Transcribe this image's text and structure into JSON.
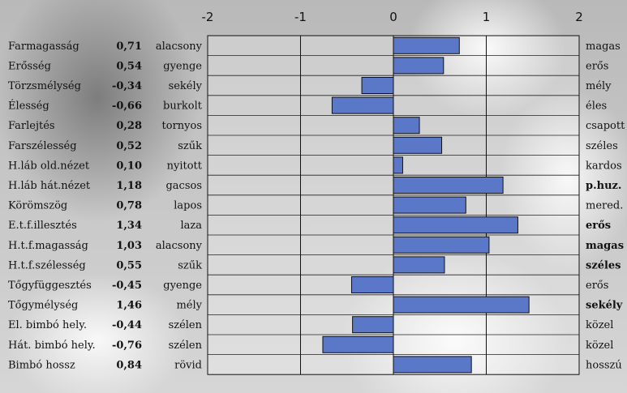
{
  "chart_data": {
    "type": "bar",
    "orientation": "horizontal",
    "xlim": [
      -2,
      2
    ],
    "xticks": [
      -2,
      -1,
      0,
      1,
      2
    ],
    "grid": true,
    "bar_color": "#5a77c8",
    "rows": [
      {
        "trait": "Farmagasság",
        "value": 0.71,
        "value_label": "0,71",
        "left": "alacsony",
        "right": "magas",
        "right_bold": false
      },
      {
        "trait": "Erősség",
        "value": 0.54,
        "value_label": "0,54",
        "left": "gyenge",
        "right": "erős",
        "right_bold": false
      },
      {
        "trait": "Törzsmélység",
        "value": -0.34,
        "value_label": "-0,34",
        "left": "sekély",
        "right": "mély",
        "right_bold": false
      },
      {
        "trait": "Élesség",
        "value": -0.66,
        "value_label": "-0,66",
        "left": "burkolt",
        "right": "éles",
        "right_bold": false
      },
      {
        "trait": "Farlejtés",
        "value": 0.28,
        "value_label": "0,28",
        "left": "tornyos",
        "right": "csapott",
        "right_bold": false
      },
      {
        "trait": "Farszélesség",
        "value": 0.52,
        "value_label": "0,52",
        "left": "szűk",
        "right": "széles",
        "right_bold": false
      },
      {
        "trait": "H.láb old.nézet",
        "value": 0.1,
        "value_label": "0,10",
        "left": "nyitott",
        "right": "kardos",
        "right_bold": false
      },
      {
        "trait": "H.láb hát.nézet",
        "value": 1.18,
        "value_label": "1,18",
        "left": "gacsos",
        "right": "p.huz.",
        "right_bold": true
      },
      {
        "trait": "Körömszög",
        "value": 0.78,
        "value_label": "0,78",
        "left": "lapos",
        "right": "mered.",
        "right_bold": false
      },
      {
        "trait": "E.t.f.illesztés",
        "value": 1.34,
        "value_label": "1,34",
        "left": "laza",
        "right": "erős",
        "right_bold": true
      },
      {
        "trait": "H.t.f.magasság",
        "value": 1.03,
        "value_label": "1,03",
        "left": "alacsony",
        "right": "magas",
        "right_bold": true
      },
      {
        "trait": "H.t.f.szélesség",
        "value": 0.55,
        "value_label": "0,55",
        "left": "szűk",
        "right": "széles",
        "right_bold": true
      },
      {
        "trait": "Tőgyfüggesztés",
        "value": -0.45,
        "value_label": "-0,45",
        "left": "gyenge",
        "right": "erős",
        "right_bold": false
      },
      {
        "trait": "Tőgymélység",
        "value": 1.46,
        "value_label": "1,46",
        "left": "mély",
        "right": "sekély",
        "right_bold": true
      },
      {
        "trait": "El. bimbó hely.",
        "value": -0.44,
        "value_label": "-0,44",
        "left": "szélen",
        "right": "közel",
        "right_bold": false
      },
      {
        "trait": "Hát. bimbó hely.",
        "value": -0.76,
        "value_label": "-0,76",
        "left": "szélen",
        "right": "közel",
        "right_bold": false
      },
      {
        "trait": "Bimbó hossz",
        "value": 0.84,
        "value_label": "0,84",
        "left": "rövid",
        "right": "hosszú",
        "right_bold": false
      }
    ]
  }
}
